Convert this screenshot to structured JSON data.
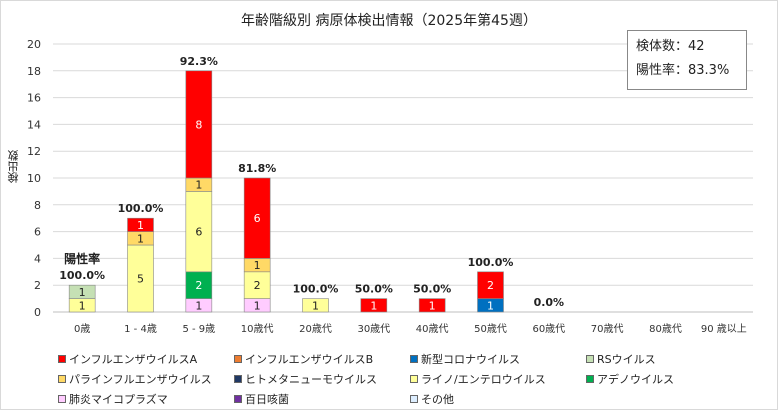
{
  "chart_data": {
    "type": "bar",
    "stacked": true,
    "title": "年齢階級別 病原体検出情報（2025年第45週）",
    "ylabel": "検出数",
    "xlabel": "",
    "ylim": [
      0,
      20
    ],
    "yticks": [
      0,
      2,
      4,
      6,
      8,
      10,
      12,
      14,
      16,
      18,
      20
    ],
    "grid": true,
    "legend_position": "bottom",
    "categories": [
      "0歳",
      "1 - 4歳",
      "5 - 9歳",
      "10歳代",
      "20歳代",
      "30歳代",
      "40歳代",
      "50歳代",
      "60歳代",
      "70歳代",
      "80歳代",
      "90 歳以上"
    ],
    "series": [
      {
        "name": "インフルエンザウイルスA",
        "color": "#ff0000",
        "values": [
          0,
          1,
          8,
          6,
          0,
          1,
          1,
          2,
          0,
          0,
          0,
          0
        ]
      },
      {
        "name": "インフルエンザウイルスB",
        "color": "#ed7d31",
        "values": [
          0,
          0,
          0,
          0,
          0,
          0,
          0,
          0,
          0,
          0,
          0,
          0
        ]
      },
      {
        "name": "新型コロナウイルス",
        "color": "#0070c0",
        "values": [
          0,
          0,
          0,
          0,
          0,
          0,
          0,
          1,
          0,
          0,
          0,
          0
        ]
      },
      {
        "name": "RSウイルス",
        "color": "#c5e0b4",
        "values": [
          1,
          0,
          0,
          0,
          0,
          0,
          0,
          0,
          0,
          0,
          0,
          0
        ]
      },
      {
        "name": "パラインフルエンザウイルス",
        "color": "#ffd966",
        "values": [
          0,
          1,
          1,
          1,
          0,
          0,
          0,
          0,
          0,
          0,
          0,
          0
        ]
      },
      {
        "name": "ヒトメタニューモウイルス",
        "color": "#203864",
        "values": [
          0,
          0,
          0,
          0,
          0,
          0,
          0,
          0,
          0,
          0,
          0,
          0
        ]
      },
      {
        "name": "ライノ/エンテロウイルス",
        "color": "#ffff99",
        "values": [
          1,
          5,
          6,
          2,
          1,
          0,
          0,
          0,
          0,
          0,
          0,
          0
        ]
      },
      {
        "name": "アデノウイルス",
        "color": "#00b050",
        "values": [
          0,
          0,
          2,
          0,
          0,
          0,
          0,
          0,
          0,
          0,
          0,
          0
        ]
      },
      {
        "name": "肺炎マイコプラズマ",
        "color": "#ffccff",
        "values": [
          0,
          0,
          1,
          1,
          0,
          0,
          0,
          0,
          0,
          0,
          0,
          0
        ]
      },
      {
        "name": "百日咳菌",
        "color": "#7030a0",
        "values": [
          0,
          0,
          0,
          0,
          0,
          0,
          0,
          0,
          0,
          0,
          0,
          0
        ]
      },
      {
        "name": "その他",
        "color": "#ddeeff",
        "values": [
          0,
          0,
          0,
          0,
          0,
          0,
          0,
          0,
          0,
          0,
          0,
          0
        ]
      }
    ],
    "positivity_label": "陽性率",
    "positivity_rates": [
      "100.0%",
      "100.0%",
      "92.3%",
      "81.8%",
      "100.0%",
      "50.0%",
      "50.0%",
      "100.0%",
      "0.0%",
      "",
      "",
      ""
    ]
  },
  "info": {
    "specimens": "検体数：42",
    "positivity": "陽性率：83.3%"
  }
}
